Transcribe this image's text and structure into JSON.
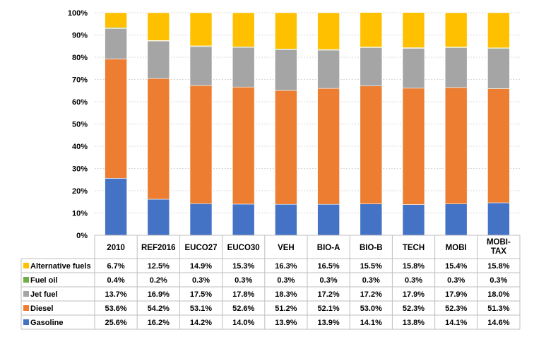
{
  "chart_data": {
    "type": "bar",
    "stacked": true,
    "percent": true,
    "categories": [
      "2010",
      "REF2016",
      "EUCO27",
      "EUCO30",
      "VEH",
      "BIO-A",
      "BIO-B",
      "TECH",
      "MOBI",
      "MOBI-TAX"
    ],
    "ylim": [
      0,
      100
    ],
    "yticks": [
      "0%",
      "10%",
      "20%",
      "30%",
      "40%",
      "50%",
      "60%",
      "70%",
      "80%",
      "90%",
      "100%"
    ],
    "grid": true,
    "legend": "data-table-left",
    "series": [
      {
        "name": "Gasoline",
        "color": "#4472C4",
        "values": [
          25.6,
          16.2,
          14.2,
          14.0,
          13.9,
          13.9,
          14.1,
          13.8,
          14.1,
          14.6
        ],
        "labels": [
          "25.6%",
          "16.2%",
          "14.2%",
          "14.0%",
          "13.9%",
          "13.9%",
          "14.1%",
          "13.8%",
          "14.1%",
          "14.6%"
        ]
      },
      {
        "name": "Diesel",
        "color": "#ED7D31",
        "values": [
          53.6,
          54.2,
          53.1,
          52.6,
          51.2,
          52.1,
          53.0,
          52.3,
          52.3,
          51.3
        ],
        "labels": [
          "53.6%",
          "54.2%",
          "53.1%",
          "52.6%",
          "51.2%",
          "52.1%",
          "53.0%",
          "52.3%",
          "52.3%",
          "51.3%"
        ]
      },
      {
        "name": "Jet fuel",
        "color": "#A5A5A5",
        "values": [
          13.7,
          16.9,
          17.5,
          17.8,
          18.3,
          17.2,
          17.2,
          17.9,
          17.9,
          18.0
        ],
        "labels": [
          "13.7%",
          "16.9%",
          "17.5%",
          "17.8%",
          "18.3%",
          "17.2%",
          "17.2%",
          "17.9%",
          "17.9%",
          "18.0%"
        ]
      },
      {
        "name": "Fuel oil",
        "color": "#70AD47",
        "values": [
          0.4,
          0.2,
          0.3,
          0.3,
          0.3,
          0.3,
          0.3,
          0.3,
          0.3,
          0.3
        ],
        "labels": [
          "0.4%",
          "0.2%",
          "0.3%",
          "0.3%",
          "0.3%",
          "0.3%",
          "0.3%",
          "0.3%",
          "0.3%",
          "0.3%"
        ]
      },
      {
        "name": "Alternative fuels",
        "color": "#FFC000",
        "values": [
          6.7,
          12.5,
          14.9,
          15.3,
          16.3,
          16.5,
          15.5,
          15.8,
          15.4,
          15.8
        ],
        "labels": [
          "6.7%",
          "12.5%",
          "14.9%",
          "15.3%",
          "16.3%",
          "16.5%",
          "15.5%",
          "15.8%",
          "15.4%",
          "15.8%"
        ]
      }
    ]
  }
}
